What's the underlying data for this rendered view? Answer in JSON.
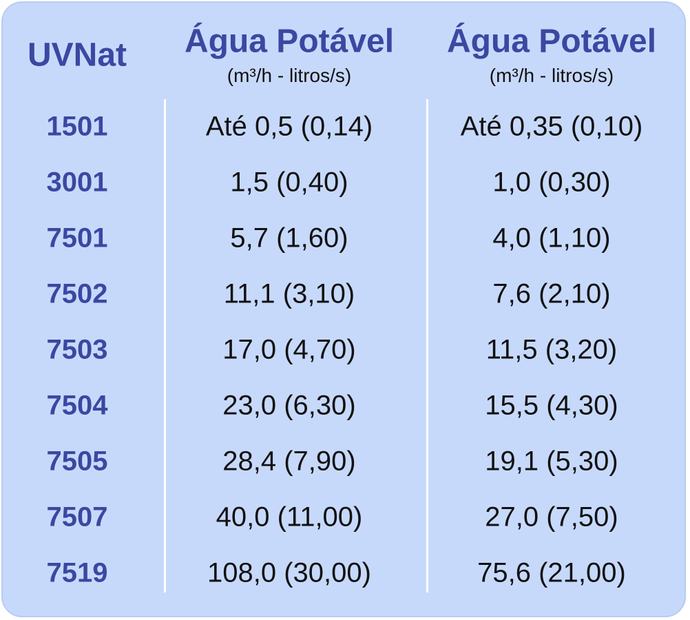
{
  "table": {
    "columns": [
      {
        "title": "UVNat"
      },
      {
        "title": "Água Potável",
        "subtitle": "(m³/h - litros/s)"
      },
      {
        "title": "Água Potável",
        "subtitle": "(m³/h - litros/s)"
      }
    ],
    "rows": [
      [
        "1501",
        "Até 0,5 (0,14)",
        "Até 0,35 (0,10)"
      ],
      [
        "3001",
        "1,5 (0,40)",
        "1,0 (0,30)"
      ],
      [
        "7501",
        "5,7 (1,60)",
        "4,0 (1,10)"
      ],
      [
        "7502",
        "11,1 (3,10)",
        "7,6 (2,10)"
      ],
      [
        "7503",
        "17,0 (4,70)",
        "11,5 (3,20)"
      ],
      [
        "7504",
        "23,0 (6,30)",
        "15,5 (4,30)"
      ],
      [
        "7505",
        "28,4 (7,90)",
        "19,1 (5,30)"
      ],
      [
        "7507",
        "40,0 (11,00)",
        "27,0 (7,50)"
      ],
      [
        "7519",
        "108,0 (30,00)",
        "75,6 (21,00)"
      ]
    ]
  }
}
